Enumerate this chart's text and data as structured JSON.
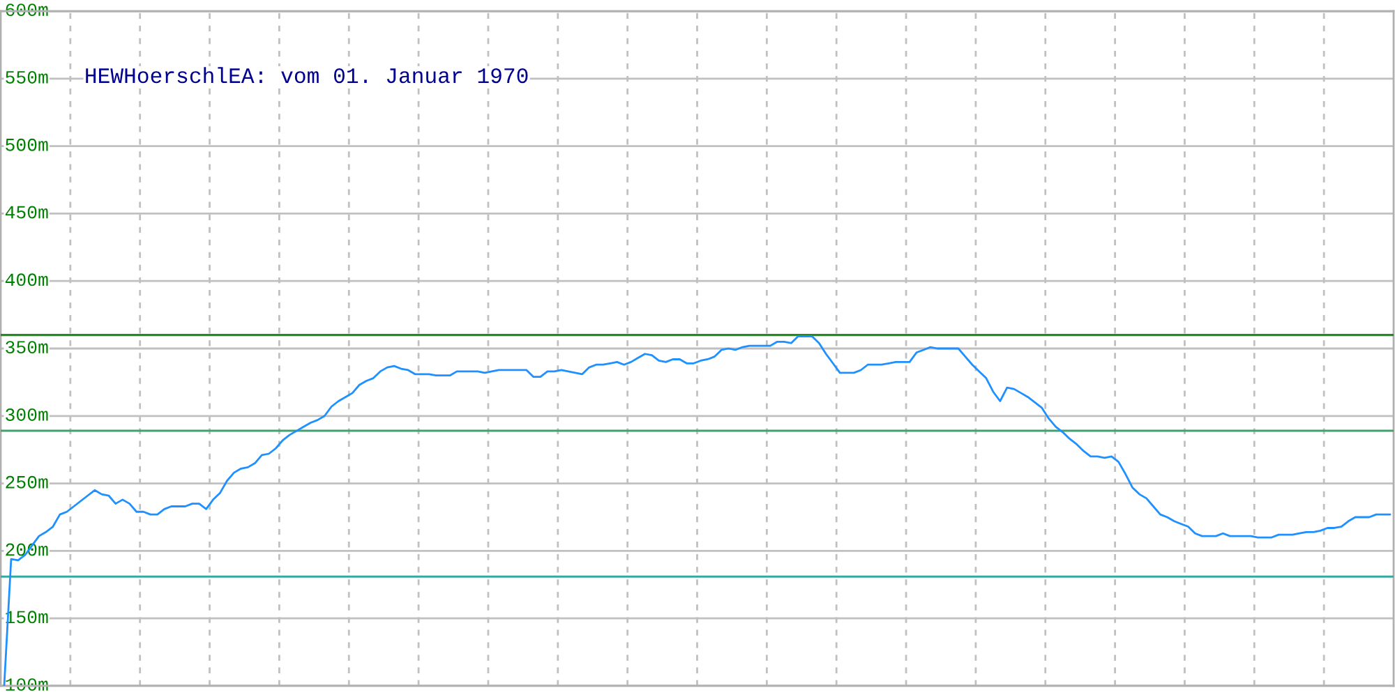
{
  "chart_data": {
    "type": "line",
    "title": "HEWHoerschlEA: vom 01. Januar 1970",
    "categories": [
      null,
      null,
      null,
      null,
      null,
      null,
      null,
      null,
      null,
      null,
      null,
      null,
      null,
      null,
      null,
      null,
      null,
      null,
      null,
      null,
      null,
      null,
      null,
      null,
      null,
      null,
      null,
      null,
      null,
      null,
      null,
      null,
      null,
      null,
      null,
      null,
      null,
      null,
      null,
      null,
      null,
      null,
      null,
      null,
      null,
      null,
      null,
      null,
      null,
      null,
      null,
      null,
      null,
      null,
      null,
      null,
      null,
      null,
      null,
      null,
      null,
      null,
      null,
      null,
      null,
      null,
      null,
      null,
      null,
      null,
      null,
      null,
      null,
      null,
      null,
      null,
      null,
      null,
      null,
      null,
      null,
      null,
      null,
      null,
      null,
      null,
      null,
      null,
      null,
      null,
      null,
      null,
      null,
      null,
      null,
      null,
      null,
      null,
      null,
      null,
      null,
      null,
      null,
      null,
      null,
      null,
      null,
      null,
      null,
      null,
      null,
      null,
      null,
      null,
      null,
      null,
      null,
      null,
      null,
      null,
      null,
      null,
      null,
      null,
      null,
      null,
      null,
      null,
      null,
      null,
      null,
      null,
      null,
      null,
      null,
      null,
      null,
      null,
      null,
      null,
      null,
      null,
      null,
      null,
      null,
      null,
      null,
      null,
      null,
      null,
      null,
      null,
      null,
      null,
      null,
      null,
      null,
      null,
      null,
      null,
      null,
      null,
      null,
      null,
      null,
      null,
      null,
      null,
      null,
      null,
      null,
      null,
      null,
      null,
      null,
      null,
      null,
      null,
      null,
      null,
      null,
      null,
      null,
      null,
      null,
      null,
      null,
      null,
      null,
      null,
      null,
      null,
      null,
      null,
      null,
      null,
      null,
      null,
      null,
      null
    ],
    "series": [
      {
        "color": "#1e90ff",
        "values": [
          100,
          194,
          193,
          197,
          204,
          211,
          214,
          218,
          227,
          229,
          233,
          237,
          241,
          245,
          242,
          241,
          235,
          238,
          235,
          229,
          229,
          227,
          227,
          231,
          233,
          233,
          233,
          235,
          235,
          231,
          238,
          243,
          252,
          258,
          261,
          262,
          265,
          271,
          272,
          276,
          282,
          286,
          289,
          292,
          295,
          297,
          300,
          307,
          311,
          314,
          317,
          323,
          326,
          328,
          333,
          336,
          337,
          335,
          334,
          331,
          331,
          331,
          330,
          330,
          330,
          333,
          333,
          333,
          333,
          332,
          333,
          334,
          334,
          334,
          334,
          334,
          329,
          329,
          333,
          333,
          334,
          333,
          332,
          331,
          336,
          338,
          338,
          339,
          340,
          338,
          340,
          343,
          346,
          345,
          341,
          340,
          342,
          342,
          339,
          339,
          341,
          342,
          344,
          349,
          350,
          349,
          351,
          352,
          352,
          352,
          352,
          355,
          355,
          354,
          359,
          359,
          359,
          354,
          346,
          339,
          332,
          332,
          332,
          334,
          338,
          338,
          338,
          339,
          340,
          340,
          340,
          347,
          349,
          351,
          350,
          350,
          350,
          350,
          344,
          338,
          333,
          328,
          318,
          311,
          321,
          320,
          317,
          314,
          310,
          306,
          298,
          292,
          288,
          283,
          279,
          274,
          270,
          270,
          269,
          270,
          266,
          257,
          247,
          242,
          239,
          233,
          227,
          225,
          222,
          220,
          218,
          213,
          211,
          211,
          211,
          213,
          211,
          211,
          211,
          211,
          210,
          210,
          210,
          212,
          212,
          212,
          213,
          214,
          214,
          215,
          217,
          217,
          218,
          222,
          225,
          225,
          225,
          227,
          227,
          227
        ]
      }
    ],
    "ylim": [
      100,
      600
    ],
    "yticks": [
      {
        "value": 100,
        "label": "100m"
      },
      {
        "value": 150,
        "label": "150m"
      },
      {
        "value": 200,
        "label": "200m"
      },
      {
        "value": 250,
        "label": "250m"
      },
      {
        "value": 300,
        "label": "300m"
      },
      {
        "value": 350,
        "label": "350m"
      },
      {
        "value": 400,
        "label": "400m"
      },
      {
        "value": 450,
        "label": "450m"
      },
      {
        "value": 500,
        "label": "500m"
      },
      {
        "value": 550,
        "label": "550m"
      },
      {
        "value": 600,
        "label": "600m"
      }
    ],
    "tick_labels": "y",
    "grid": true,
    "ref_lines": [
      {
        "axis": "y",
        "value": 360,
        "color": "#228b22"
      },
      {
        "axis": "y",
        "value": 289,
        "color": "#44a070"
      },
      {
        "axis": "y",
        "value": 181,
        "color": "#33aaa0"
      }
    ]
  }
}
